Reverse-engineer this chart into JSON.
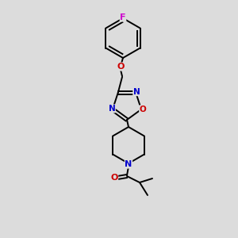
{
  "background_color": "#dcdcdc",
  "bond_color": "#000000",
  "atom_colors": {
    "N": "#0000cc",
    "O": "#cc0000",
    "F": "#cc00cc"
  },
  "figsize": [
    3.0,
    3.0
  ],
  "dpi": 100,
  "bond_lw": 1.4,
  "font_size": 8.5
}
